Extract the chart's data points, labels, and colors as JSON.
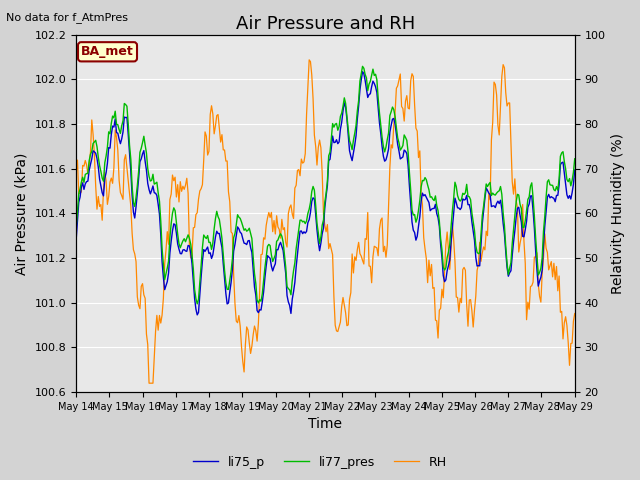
{
  "title": "Air Pressure and RH",
  "top_left_text": "No data for f_AtmPres",
  "box_label": "BA_met",
  "xlabel": "Time",
  "ylabel_left": "Air Pressure (kPa)",
  "ylabel_right": "Relativity Humidity (%)",
  "ylim_left": [
    100.6,
    102.2
  ],
  "ylim_right": [
    20,
    100
  ],
  "yticks_left": [
    100.6,
    100.8,
    101.0,
    101.2,
    101.4,
    101.6,
    101.8,
    102.0,
    102.2
  ],
  "yticks_right": [
    20,
    30,
    40,
    50,
    60,
    70,
    80,
    90,
    100
  ],
  "xtick_labels": [
    "May 14",
    "May 15",
    "May 16",
    "May 17",
    "May 18",
    "May 19",
    "May 20",
    "May 21",
    "May 22",
    "May 23",
    "May 24",
    "May 25",
    "May 26",
    "May 27",
    "May 28",
    "May 29"
  ],
  "line_li75_color": "#0000cc",
  "line_li77_color": "#00bb00",
  "line_rh_color": "#ff8800",
  "legend_labels": [
    "li75_p",
    "li77_pres",
    "RH"
  ],
  "background_color": "#d3d3d3",
  "plot_bg_color": "#e8e8e8",
  "title_fontsize": 13,
  "axis_fontsize": 10,
  "tick_fontsize": 8
}
